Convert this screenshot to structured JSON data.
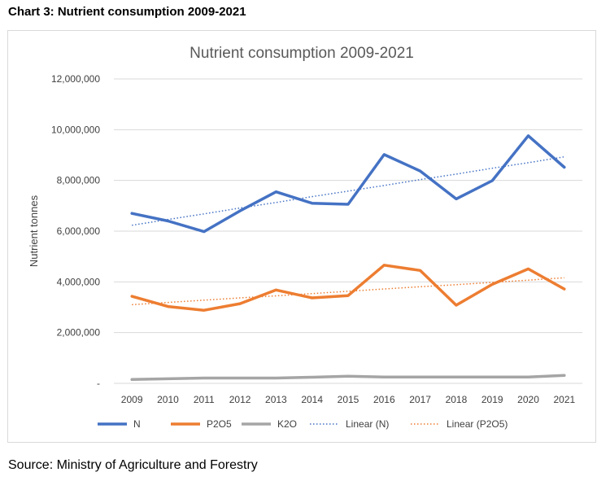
{
  "caption": "Chart 3: Nutrient consumption 2009-2021",
  "source": "Source: Ministry of Agriculture and Forestry",
  "chart_data": {
    "type": "line",
    "title": "Nutrient consumption 2009-2021",
    "xlabel": "",
    "ylabel": "Nutrient tonnes",
    "ylim": [
      0,
      12000000
    ],
    "y_ticks": [
      0,
      2000000,
      4000000,
      6000000,
      8000000,
      10000000,
      12000000
    ],
    "y_tick_labels": [
      "-",
      "2,000,000",
      "4,000,000",
      "6,000,000",
      "8,000,000",
      "10,000,000",
      "12,000,000"
    ],
    "grid": true,
    "legend_position": "bottom",
    "categories": [
      "2009",
      "2010",
      "2011",
      "2012",
      "2013",
      "2014",
      "2015",
      "2016",
      "2017",
      "2018",
      "2019",
      "2020",
      "2021"
    ],
    "series": [
      {
        "name": "N",
        "color": "#4472C4",
        "style": "solid",
        "values": [
          6700000,
          6400000,
          5980000,
          6800000,
          7550000,
          7100000,
          7060000,
          9020000,
          8370000,
          7270000,
          7990000,
          9760000,
          8520000
        ]
      },
      {
        "name": "P2O5",
        "color": "#ED7D31",
        "style": "solid",
        "values": [
          3430000,
          3030000,
          2880000,
          3140000,
          3680000,
          3370000,
          3460000,
          4660000,
          4450000,
          3080000,
          3900000,
          4510000,
          3720000
        ]
      },
      {
        "name": "K2O",
        "color": "#A5A5A5",
        "style": "solid",
        "values": [
          150000,
          180000,
          210000,
          210000,
          210000,
          240000,
          280000,
          250000,
          250000,
          250000,
          250000,
          250000,
          310000
        ]
      },
      {
        "name": "Linear (N)",
        "color": "#4472C4",
        "style": "dotted",
        "values": [
          6230000,
          6460000,
          6680000,
          6910000,
          7130000,
          7360000,
          7580000,
          7800000,
          8030000,
          8250000,
          8480000,
          8700000,
          8930000
        ]
      },
      {
        "name": "Linear (P2O5)",
        "color": "#ED7D31",
        "style": "dotted",
        "values": [
          3100000,
          3190000,
          3280000,
          3370000,
          3450000,
          3540000,
          3630000,
          3720000,
          3810000,
          3890000,
          3980000,
          4070000,
          4160000
        ]
      }
    ]
  }
}
